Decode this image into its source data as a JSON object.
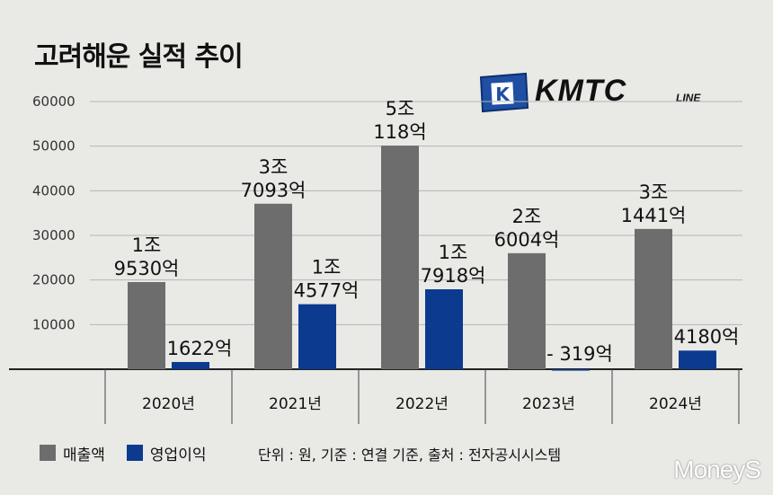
{
  "title": "고려해운 실적 추이",
  "logo": {
    "text": "KMTC",
    "sub": "LINE",
    "flag_letter": "K"
  },
  "chart_data": {
    "type": "bar",
    "categories": [
      "2020년",
      "2021년",
      "2022년",
      "2023년",
      "2024년"
    ],
    "series": [
      {
        "name": "매출액",
        "color": "#6d6d6d",
        "values": [
          19530,
          37093,
          50118,
          26004,
          31441
        ],
        "labels": [
          [
            "1조",
            "9530억"
          ],
          [
            "3조",
            "7093억"
          ],
          [
            "5조",
            "118억"
          ],
          [
            "2조",
            "6004억"
          ],
          [
            "3조",
            "1441억"
          ]
        ]
      },
      {
        "name": "영업이익",
        "color": "#0b3a8f",
        "values": [
          1622,
          14577,
          17918,
          -319,
          4180
        ],
        "labels": [
          [
            "1622억"
          ],
          [
            "1조",
            "4577억"
          ],
          [
            "1조",
            "7918억"
          ],
          [
            "- 319억"
          ],
          [
            "4180억"
          ]
        ]
      }
    ],
    "yticks": [
      "60000",
      "50000",
      "40000",
      "30000",
      "20000",
      "10000"
    ],
    "ylim": [
      0,
      60000
    ],
    "grid": true,
    "legend": "bottom-left"
  },
  "footnote": "단위 : 원, 기준 : 연결 기준, 출처 : 전자공시시스템",
  "watermark": "MoneyS"
}
